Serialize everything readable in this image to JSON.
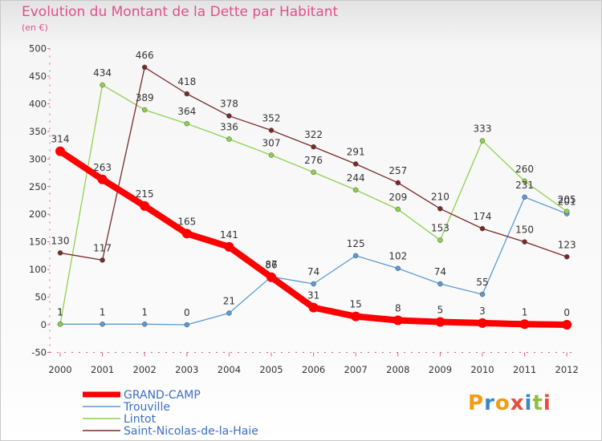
{
  "title": "Evolution du Montant de la Dette par Habitant",
  "subtitle": "(en €)",
  "logo": "Proxiti",
  "chart_data": {
    "type": "line",
    "title": "Evolution du Montant de la Dette par Habitant",
    "subtitle": "(en €)",
    "x": [
      "2000",
      "2001",
      "2002",
      "2003",
      "2004",
      "2005",
      "2006",
      "2007",
      "2008",
      "2009",
      "2010",
      "2011",
      "2012"
    ],
    "yticks": [
      "-50",
      "0",
      "50",
      "100",
      "150",
      "200",
      "250",
      "300",
      "350",
      "400",
      "450",
      "500"
    ],
    "ylim": [
      -50,
      500
    ],
    "grid": false,
    "legend_position": "bottom-left",
    "series": [
      {
        "name": "GRAND-CAMP",
        "color": "#ff0000",
        "bold": true,
        "values": [
          314,
          263,
          215,
          165,
          141,
          86,
          31,
          15,
          8,
          5,
          3,
          1,
          0
        ]
      },
      {
        "name": "Trouville",
        "color": "#5b9bd5",
        "values": [
          1,
          1,
          1,
          0,
          21,
          87,
          74,
          125,
          102,
          74,
          55,
          231,
          201
        ]
      },
      {
        "name": "Lintot",
        "color": "#8fd14f",
        "values": [
          1,
          434,
          389,
          364,
          336,
          307,
          276,
          244,
          209,
          153,
          333,
          260,
          205
        ]
      },
      {
        "name": "Saint-Nicolas-de-la-Haie",
        "color": "#7a2a2a",
        "values": [
          130,
          117,
          466,
          418,
          378,
          352,
          322,
          291,
          257,
          210,
          174,
          150,
          123
        ]
      }
    ]
  }
}
